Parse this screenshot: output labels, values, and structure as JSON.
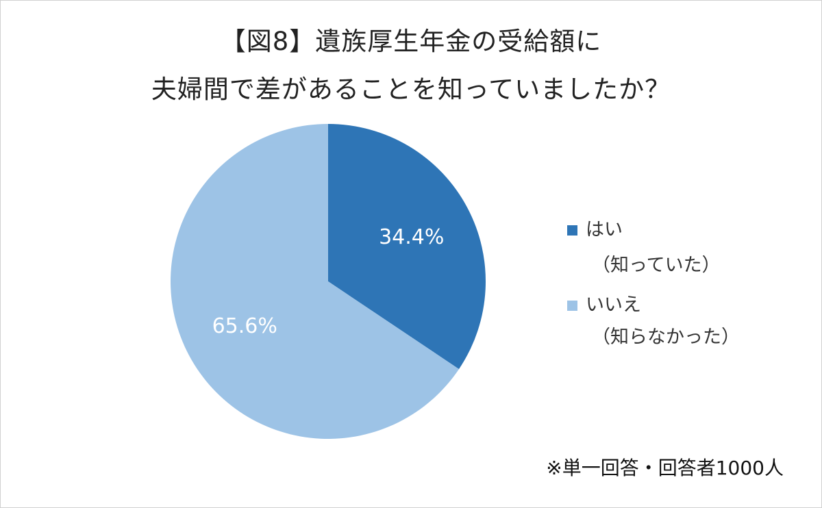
{
  "title_line_1": "【図8】遺族厚生年金の受給額に",
  "title_line_2": "夫婦間で差があることを知っていましたか？",
  "footnote": "※単一回答・回答者1000人",
  "chart_data": {
    "type": "pie",
    "title": "【図8】遺族厚生年金の受給額に夫婦間で差があることを知っていましたか？",
    "slices": [
      {
        "label": "はい",
        "sublabel": "（知っていた）",
        "value": 34.4,
        "display": "34.4%",
        "color": "#2e75b6"
      },
      {
        "label": "いいえ",
        "sublabel": "（知らなかった）",
        "value": 65.6,
        "display": "65.6%",
        "color": "#9dc3e6"
      }
    ],
    "legend_position": "right",
    "start_angle": "12 o'clock, clockwise"
  }
}
